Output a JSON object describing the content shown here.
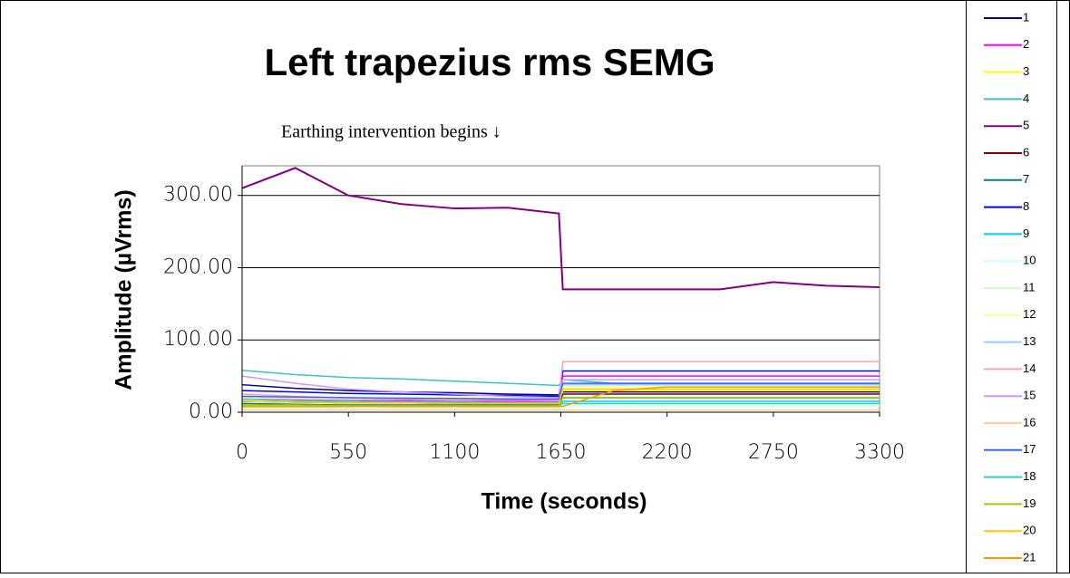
{
  "chart_data": {
    "type": "line",
    "title": "Left trapezius rms SEMG",
    "annotation": "Earthing intervention begins ↓",
    "x_label": "Time (seconds)",
    "y_label": "Amplitude (µVrms)",
    "x": [
      0,
      275,
      550,
      825,
      1100,
      1375,
      1640,
      1660,
      1925,
      2200,
      2475,
      2750,
      3025,
      3300
    ],
    "xlim": [
      0,
      3300
    ],
    "xticks": [
      0,
      550,
      1100,
      1650,
      2200,
      2750,
      3300
    ],
    "ylim": [
      0,
      341
    ],
    "yticks": [
      {
        "value": 0,
        "label": "0.00"
      },
      {
        "value": 100,
        "label": "100.00"
      },
      {
        "value": 200,
        "label": "200.00"
      },
      {
        "value": 300,
        "label": "300.00"
      }
    ],
    "grid": true,
    "legend": "right",
    "series": [
      {
        "name": "1",
        "color": "#000080",
        "values": [
          38,
          33,
          30,
          28,
          27,
          25,
          24,
          28,
          28,
          28,
          28,
          28,
          28,
          28
        ]
      },
      {
        "name": "2",
        "color": "#ff00ff",
        "values": [
          20,
          18,
          17,
          16,
          16,
          15,
          15,
          50,
          50,
          50,
          50,
          50,
          50,
          50
        ]
      },
      {
        "name": "3",
        "color": "#ffff00",
        "values": [
          10,
          9,
          9,
          8,
          8,
          8,
          8,
          30,
          30,
          30,
          30,
          30,
          30,
          30
        ]
      },
      {
        "name": "4",
        "color": "#40c0c0",
        "values": [
          58,
          52,
          48,
          46,
          43,
          40,
          37,
          45,
          40,
          40,
          40,
          40,
          40,
          40
        ]
      },
      {
        "name": "5",
        "color": "#800080",
        "values": [
          310,
          338,
          300,
          288,
          282,
          283,
          275,
          170,
          170,
          170,
          170,
          180,
          175,
          173
        ]
      },
      {
        "name": "6",
        "color": "#800000",
        "values": [
          15,
          14,
          13,
          13,
          12,
          12,
          12,
          25,
          25,
          25,
          25,
          25,
          25,
          25
        ]
      },
      {
        "name": "7",
        "color": "#008080",
        "values": [
          12,
          11,
          10,
          10,
          10,
          10,
          10,
          20,
          20,
          20,
          20,
          20,
          20,
          20
        ]
      },
      {
        "name": "8",
        "color": "#0000ff",
        "values": [
          30,
          28,
          26,
          25,
          24,
          23,
          22,
          57,
          57,
          57,
          57,
          57,
          57,
          57
        ]
      },
      {
        "name": "9",
        "color": "#00ccff",
        "values": [
          8,
          7,
          6,
          6,
          6,
          6,
          5,
          15,
          15,
          15,
          15,
          15,
          15,
          15
        ]
      },
      {
        "name": "10",
        "color": "#ccffff",
        "values": [
          5,
          5,
          5,
          5,
          5,
          5,
          5,
          8,
          8,
          8,
          8,
          8,
          8,
          8
        ]
      },
      {
        "name": "11",
        "color": "#ccffcc",
        "values": [
          6,
          6,
          6,
          6,
          6,
          6,
          6,
          10,
          10,
          10,
          10,
          10,
          10,
          10
        ]
      },
      {
        "name": "12",
        "color": "#ffff99",
        "values": [
          20,
          19,
          18,
          18,
          17,
          17,
          17,
          35,
          35,
          35,
          35,
          35,
          35,
          35
        ]
      },
      {
        "name": "13",
        "color": "#99ccff",
        "values": [
          22,
          21,
          20,
          20,
          19,
          19,
          18,
          38,
          38,
          38,
          38,
          38,
          38,
          38
        ]
      },
      {
        "name": "14",
        "color": "#ff99cc",
        "values": [
          25,
          22,
          20,
          19,
          18,
          17,
          16,
          70,
          70,
          70,
          70,
          70,
          70,
          70
        ]
      },
      {
        "name": "15",
        "color": "#cc99ff",
        "values": [
          50,
          40,
          32,
          28,
          25,
          22,
          20,
          45,
          45,
          45,
          45,
          45,
          45,
          45
        ]
      },
      {
        "name": "16",
        "color": "#ffcc99",
        "values": [
          3,
          3,
          3,
          3,
          3,
          3,
          3,
          3,
          3,
          3,
          3,
          3,
          3,
          3
        ]
      },
      {
        "name": "17",
        "color": "#3366ff",
        "values": [
          22,
          21,
          20,
          19,
          19,
          18,
          18,
          40,
          40,
          40,
          40,
          40,
          40,
          40
        ]
      },
      {
        "name": "18",
        "color": "#33cccc",
        "values": [
          18,
          16,
          15,
          14,
          14,
          13,
          13,
          12,
          12,
          12,
          12,
          12,
          12,
          12
        ]
      },
      {
        "name": "19",
        "color": "#99cc00",
        "values": [
          10,
          10,
          9,
          9,
          9,
          9,
          9,
          20,
          20,
          20,
          20,
          20,
          20,
          20
        ]
      },
      {
        "name": "20",
        "color": "#ffcc00",
        "values": [
          15,
          14,
          13,
          13,
          12,
          12,
          12,
          32,
          32,
          32,
          32,
          32,
          32,
          32
        ]
      },
      {
        "name": "21",
        "color": "#ff9900",
        "values": [
          8,
          8,
          8,
          8,
          8,
          8,
          8,
          8,
          30,
          35,
          35,
          35,
          35,
          35
        ]
      }
    ]
  }
}
